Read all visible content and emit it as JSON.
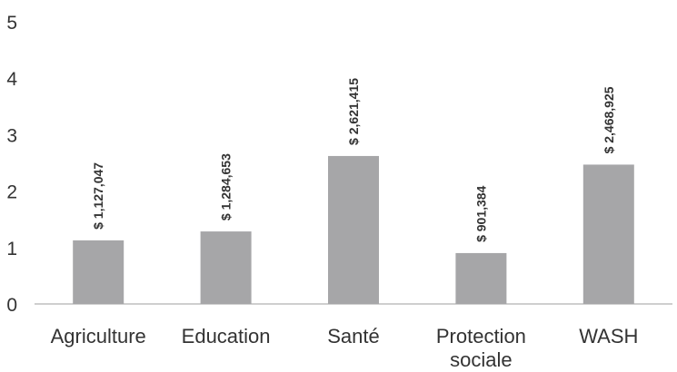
{
  "chart_data": {
    "type": "bar",
    "categories": [
      [
        "Agriculture"
      ],
      [
        "Education"
      ],
      [
        "Santé"
      ],
      [
        "Protection",
        "sociale"
      ],
      [
        "WASH"
      ]
    ],
    "values": [
      1.127047,
      1.284653,
      2.621415,
      0.901384,
      2.468925
    ],
    "data_labels": [
      "$ 1,127,047",
      "$ 1,284,653",
      "$ 2,621,415",
      "$ 901,384",
      "$ 2,468,925"
    ],
    "y_ticks": [
      "0",
      "1",
      "2",
      "3",
      "4",
      "5"
    ],
    "ylim": [
      0,
      5
    ],
    "grid": false,
    "title": "",
    "xlabel": "",
    "ylabel": "",
    "colors": {
      "bar": "#a6a6a8",
      "axis": "#bfbfbf",
      "text": "#333333"
    }
  }
}
